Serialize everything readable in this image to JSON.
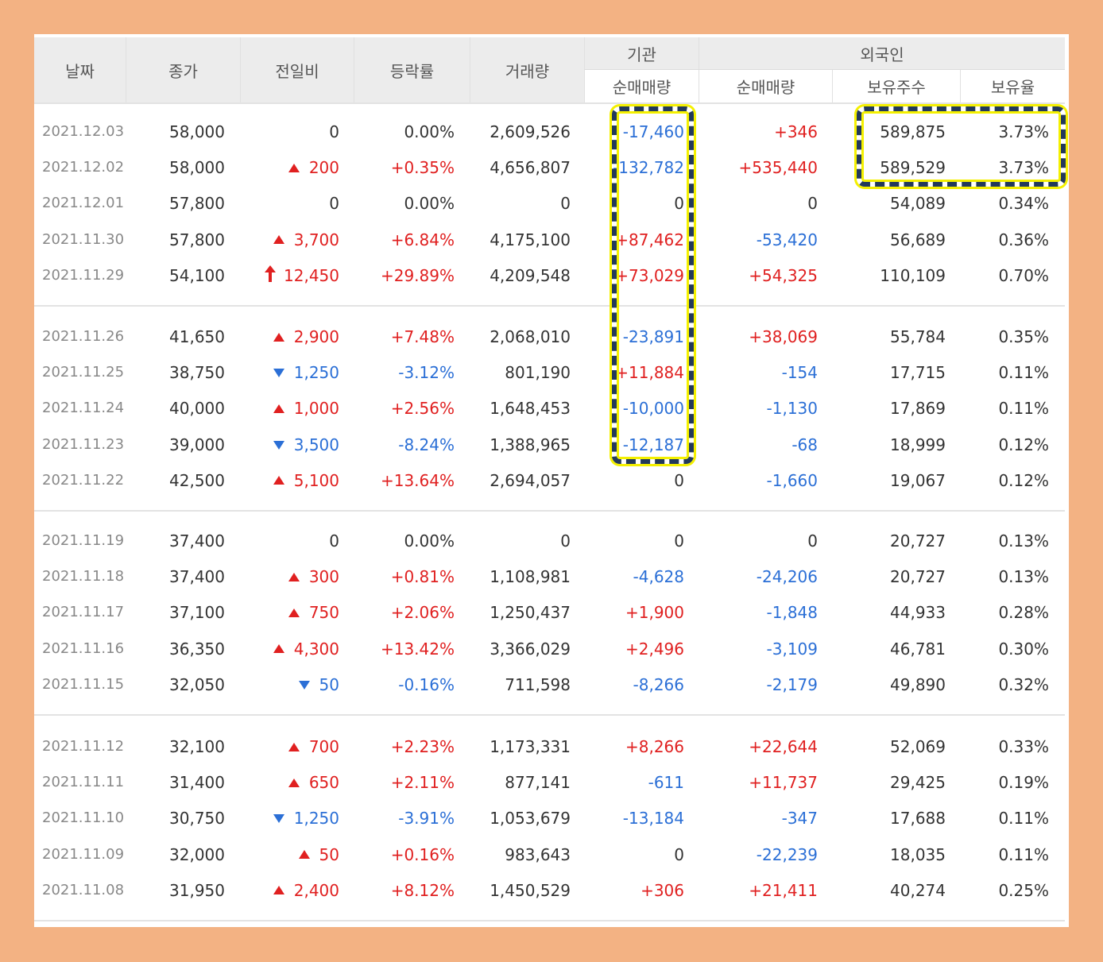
{
  "header": {
    "date": "날짜",
    "close": "종가",
    "change": "전일비",
    "rate": "등락률",
    "volume": "거래량",
    "institution": "기관",
    "foreign": "외국인",
    "inst_net": "순매매량",
    "for_net": "순매매량",
    "for_shares": "보유주수",
    "for_ratio": "보유율"
  },
  "groups": [
    [
      {
        "date": "2021.12.03",
        "close": "58,000",
        "mark": "none",
        "change": "0",
        "dir": "flat",
        "rate": "0.00%",
        "volume": "2,609,526",
        "inst": "-17,460",
        "inst_dir": "down",
        "fnet": "+346",
        "fnet_dir": "up",
        "shares": "589,875",
        "ratio": "3.73%"
      },
      {
        "date": "2021.12.02",
        "close": "58,000",
        "mark": "tri-up",
        "change": "200",
        "dir": "up",
        "rate": "+0.35%",
        "volume": "4,656,807",
        "inst": "-132,782",
        "inst_dir": "down",
        "fnet": "+535,440",
        "fnet_dir": "up",
        "shares": "589,529",
        "ratio": "3.73%"
      },
      {
        "date": "2021.12.01",
        "close": "57,800",
        "mark": "none",
        "change": "0",
        "dir": "flat",
        "rate": "0.00%",
        "volume": "0",
        "inst": "0",
        "inst_dir": "flat",
        "fnet": "0",
        "fnet_dir": "flat",
        "shares": "54,089",
        "ratio": "0.34%"
      },
      {
        "date": "2021.11.30",
        "close": "57,800",
        "mark": "tri-up",
        "change": "3,700",
        "dir": "up",
        "rate": "+6.84%",
        "volume": "4,175,100",
        "inst": "+87,462",
        "inst_dir": "up",
        "fnet": "-53,420",
        "fnet_dir": "down",
        "shares": "56,689",
        "ratio": "0.36%"
      },
      {
        "date": "2021.11.29",
        "close": "54,100",
        "mark": "arrow-up",
        "change": "12,450",
        "dir": "up",
        "rate": "+29.89%",
        "volume": "4,209,548",
        "inst": "+73,029",
        "inst_dir": "up",
        "fnet": "+54,325",
        "fnet_dir": "up",
        "shares": "110,109",
        "ratio": "0.70%"
      }
    ],
    [
      {
        "date": "2021.11.26",
        "close": "41,650",
        "mark": "tri-up",
        "change": "2,900",
        "dir": "up",
        "rate": "+7.48%",
        "volume": "2,068,010",
        "inst": "-23,891",
        "inst_dir": "down",
        "fnet": "+38,069",
        "fnet_dir": "up",
        "shares": "55,784",
        "ratio": "0.35%"
      },
      {
        "date": "2021.11.25",
        "close": "38,750",
        "mark": "tri-down",
        "change": "1,250",
        "dir": "down",
        "rate": "-3.12%",
        "volume": "801,190",
        "inst": "+11,884",
        "inst_dir": "up",
        "fnet": "-154",
        "fnet_dir": "down",
        "shares": "17,715",
        "ratio": "0.11%"
      },
      {
        "date": "2021.11.24",
        "close": "40,000",
        "mark": "tri-up",
        "change": "1,000",
        "dir": "up",
        "rate": "+2.56%",
        "volume": "1,648,453",
        "inst": "-10,000",
        "inst_dir": "down",
        "fnet": "-1,130",
        "fnet_dir": "down",
        "shares": "17,869",
        "ratio": "0.11%"
      },
      {
        "date": "2021.11.23",
        "close": "39,000",
        "mark": "tri-down",
        "change": "3,500",
        "dir": "down",
        "rate": "-8.24%",
        "volume": "1,388,965",
        "inst": "-12,187",
        "inst_dir": "down",
        "fnet": "-68",
        "fnet_dir": "down",
        "shares": "18,999",
        "ratio": "0.12%"
      },
      {
        "date": "2021.11.22",
        "close": "42,500",
        "mark": "tri-up",
        "change": "5,100",
        "dir": "up",
        "rate": "+13.64%",
        "volume": "2,694,057",
        "inst": "0",
        "inst_dir": "flat",
        "fnet": "-1,660",
        "fnet_dir": "down",
        "shares": "19,067",
        "ratio": "0.12%"
      }
    ],
    [
      {
        "date": "2021.11.19",
        "close": "37,400",
        "mark": "none",
        "change": "0",
        "dir": "flat",
        "rate": "0.00%",
        "volume": "0",
        "inst": "0",
        "inst_dir": "flat",
        "fnet": "0",
        "fnet_dir": "flat",
        "shares": "20,727",
        "ratio": "0.13%"
      },
      {
        "date": "2021.11.18",
        "close": "37,400",
        "mark": "tri-up",
        "change": "300",
        "dir": "up",
        "rate": "+0.81%",
        "volume": "1,108,981",
        "inst": "-4,628",
        "inst_dir": "down",
        "fnet": "-24,206",
        "fnet_dir": "down",
        "shares": "20,727",
        "ratio": "0.13%"
      },
      {
        "date": "2021.11.17",
        "close": "37,100",
        "mark": "tri-up",
        "change": "750",
        "dir": "up",
        "rate": "+2.06%",
        "volume": "1,250,437",
        "inst": "+1,900",
        "inst_dir": "up",
        "fnet": "-1,848",
        "fnet_dir": "down",
        "shares": "44,933",
        "ratio": "0.28%"
      },
      {
        "date": "2021.11.16",
        "close": "36,350",
        "mark": "tri-up",
        "change": "4,300",
        "dir": "up",
        "rate": "+13.42%",
        "volume": "3,366,029",
        "inst": "+2,496",
        "inst_dir": "up",
        "fnet": "-3,109",
        "fnet_dir": "down",
        "shares": "46,781",
        "ratio": "0.30%"
      },
      {
        "date": "2021.11.15",
        "close": "32,050",
        "mark": "tri-down",
        "change": "50",
        "dir": "down",
        "rate": "-0.16%",
        "volume": "711,598",
        "inst": "-8,266",
        "inst_dir": "down",
        "fnet": "-2,179",
        "fnet_dir": "down",
        "shares": "49,890",
        "ratio": "0.32%"
      }
    ],
    [
      {
        "date": "2021.11.12",
        "close": "32,100",
        "mark": "tri-up",
        "change": "700",
        "dir": "up",
        "rate": "+2.23%",
        "volume": "1,173,331",
        "inst": "+8,266",
        "inst_dir": "up",
        "fnet": "+22,644",
        "fnet_dir": "up",
        "shares": "52,069",
        "ratio": "0.33%"
      },
      {
        "date": "2021.11.11",
        "close": "31,400",
        "mark": "tri-up",
        "change": "650",
        "dir": "up",
        "rate": "+2.11%",
        "volume": "877,141",
        "inst": "-611",
        "inst_dir": "down",
        "fnet": "+11,737",
        "fnet_dir": "up",
        "shares": "29,425",
        "ratio": "0.19%"
      },
      {
        "date": "2021.11.10",
        "close": "30,750",
        "mark": "tri-down",
        "change": "1,250",
        "dir": "down",
        "rate": "-3.91%",
        "volume": "1,053,679",
        "inst": "-13,184",
        "inst_dir": "down",
        "fnet": "-347",
        "fnet_dir": "down",
        "shares": "17,688",
        "ratio": "0.11%"
      },
      {
        "date": "2021.11.09",
        "close": "32,000",
        "mark": "tri-up",
        "change": "50",
        "dir": "up",
        "rate": "+0.16%",
        "volume": "983,643",
        "inst": "0",
        "inst_dir": "flat",
        "fnet": "-22,239",
        "fnet_dir": "down",
        "shares": "18,035",
        "ratio": "0.11%"
      },
      {
        "date": "2021.11.08",
        "close": "31,950",
        "mark": "tri-up",
        "change": "2,400",
        "dir": "up",
        "rate": "+8.12%",
        "volume": "1,450,529",
        "inst": "+306",
        "inst_dir": "up",
        "fnet": "+21,411",
        "fnet_dir": "up",
        "shares": "40,274",
        "ratio": "0.25%"
      }
    ]
  ],
  "colors": {
    "up": "#e02020",
    "down": "#2b6fd6",
    "frame": "#f3b283",
    "highlight": "#f4f000"
  }
}
